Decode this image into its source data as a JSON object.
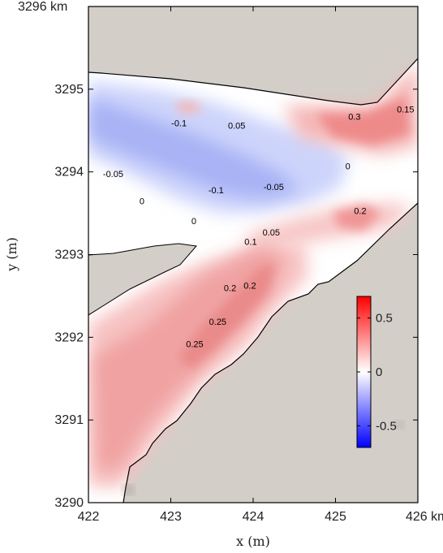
{
  "chart_data": {
    "type": "heatmap",
    "title": "",
    "xlabel": "x (m)",
    "ylabel": "y (m)",
    "xlim": [
      422,
      426
    ],
    "ylim": [
      3290,
      3296
    ],
    "x_ticks": [
      {
        "value": 422,
        "label": "422"
      },
      {
        "value": 423,
        "label": "423"
      },
      {
        "value": 424,
        "label": "424"
      },
      {
        "value": 425,
        "label": "425"
      },
      {
        "value": 426,
        "label": "426 km"
      }
    ],
    "y_ticks": [
      {
        "value": 3290,
        "label": "3290"
      },
      {
        "value": 3291,
        "label": "3291"
      },
      {
        "value": 3292,
        "label": "3292"
      },
      {
        "value": 3293,
        "label": "3293"
      },
      {
        "value": 3294,
        "label": "3294"
      },
      {
        "value": 3295,
        "label": "3295"
      },
      {
        "value": 3296,
        "label": "3296 km"
      }
    ],
    "colorbar": {
      "range": [
        -0.7,
        0.7
      ],
      "ticks": [
        {
          "value": 0.5,
          "label": "0.5"
        },
        {
          "value": 0,
          "label": "0"
        },
        {
          "value": -0.5,
          "label": "-0.5"
        }
      ],
      "colors": [
        "#0000ff",
        "#ffffff",
        "#ff0000"
      ]
    },
    "land_color": "#d3cec8",
    "contour_labels": [
      {
        "text": "-0.1",
        "x": 423.1,
        "y": 3294.55
      },
      {
        "text": "0.05",
        "x": 423.8,
        "y": 3294.52
      },
      {
        "text": "0.3",
        "x": 425.23,
        "y": 3294.63
      },
      {
        "text": "0.15",
        "x": 425.85,
        "y": 3294.72
      },
      {
        "text": "-0.05",
        "x": 422.3,
        "y": 3293.94
      },
      {
        "text": "0",
        "x": 425.15,
        "y": 3294.03
      },
      {
        "text": "-0.1",
        "x": 423.55,
        "y": 3293.74
      },
      {
        "text": "-0.05",
        "x": 424.25,
        "y": 3293.78
      },
      {
        "text": "0",
        "x": 422.65,
        "y": 3293.61
      },
      {
        "text": "0.2",
        "x": 425.3,
        "y": 3293.49
      },
      {
        "text": "0",
        "x": 423.28,
        "y": 3293.37
      },
      {
        "text": "0.05",
        "x": 424.22,
        "y": 3293.23
      },
      {
        "text": "0.1",
        "x": 423.97,
        "y": 3293.12
      },
      {
        "text": "0.2",
        "x": 423.72,
        "y": 3292.56
      },
      {
        "text": "0.2",
        "x": 423.96,
        "y": 3292.59
      },
      {
        "text": "0.25",
        "x": 423.57,
        "y": 3292.15
      },
      {
        "text": "0.25",
        "x": 423.29,
        "y": 3291.88
      }
    ]
  }
}
